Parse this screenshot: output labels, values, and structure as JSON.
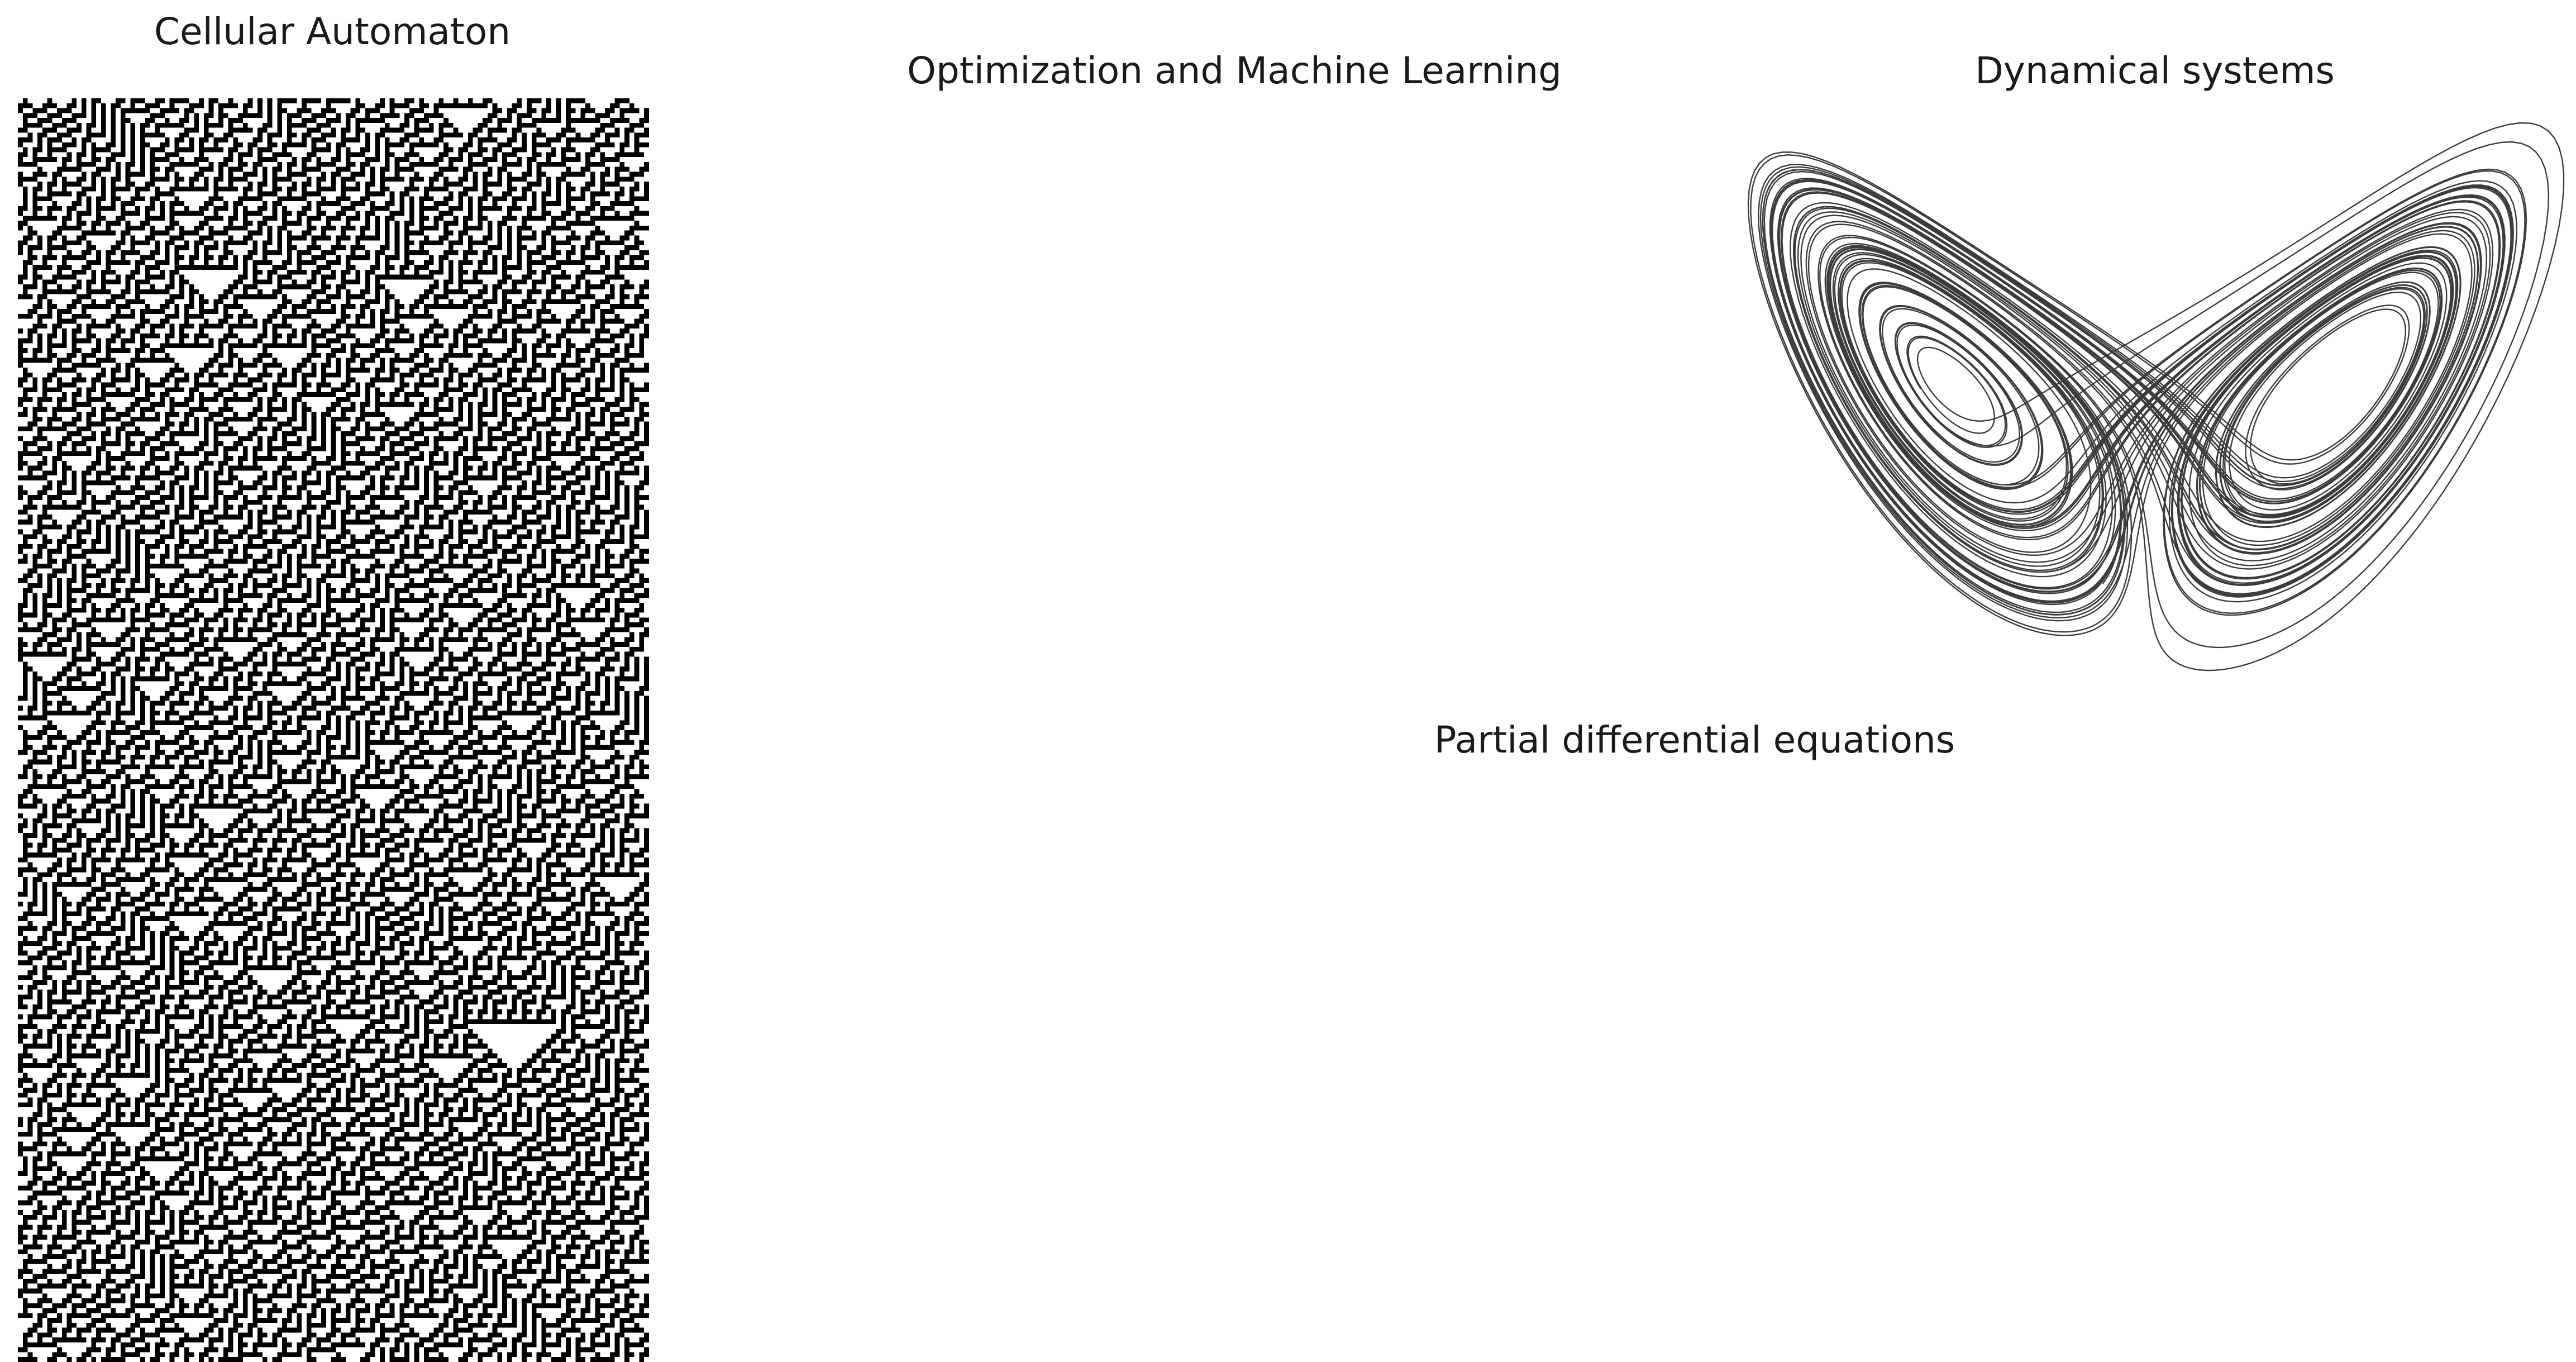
{
  "panels": {
    "cellular_automaton": {
      "title": "Cellular Automaton",
      "rule": 30,
      "cells_per_row": 129,
      "rows": 258,
      "colors": {
        "on": "#000000",
        "off": "#ffffff"
      }
    },
    "optimization": {
      "title": "Optimization and Machine Learning"
    },
    "dynamical_systems": {
      "title": "Dynamical systems",
      "system": "lorenz",
      "params": {
        "sigma": 10,
        "rho": 28,
        "beta": 2.6667
      },
      "line_color": "#3c3c3c"
    },
    "pde": {
      "title": "Partial differential equations"
    }
  }
}
